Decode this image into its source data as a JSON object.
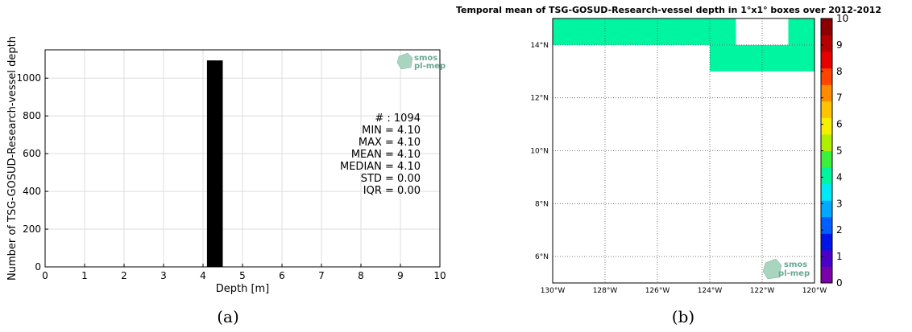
{
  "chart_data": [
    {
      "type": "bar",
      "xlabel": "Depth [m]",
      "ylabel": "Number of TSG-GOSUD-Research-vessel depth",
      "xlim": [
        0,
        10
      ],
      "ylim": [
        0,
        1150
      ],
      "x_ticks": [
        "0",
        "1",
        "2",
        "3",
        "4",
        "5",
        "6",
        "7",
        "8",
        "9",
        "10"
      ],
      "y_ticks": [
        "0",
        "200",
        "400",
        "600",
        "800",
        "1000"
      ],
      "bins": [
        [
          4.1,
          4.5
        ]
      ],
      "values": [
        1094
      ],
      "grid": true,
      "bar_color": "#000000",
      "stats": [
        "# : 1094",
        "MIN = 4.10",
        "MAX =  4.10",
        "MEAN = 4.10",
        "MEDIAN = 4.10",
        "STD = 0.00",
        "IQR = 0.00"
      ],
      "logo": [
        "smos",
        "pl-mep"
      ],
      "caption": "(a)"
    },
    {
      "type": "heatmap",
      "title": "Temporal mean of TSG-GOSUD-Research-vessel depth in 1°x1° boxes over 2012-2012",
      "lon_range": [
        -130,
        -120
      ],
      "lat_range": [
        5,
        15
      ],
      "x_ticks": [
        "130°W",
        "128°W",
        "126°W",
        "124°W",
        "122°W",
        "120°W"
      ],
      "y_ticks": [
        "6°N",
        "8°N",
        "10°N",
        "12°N",
        "14°N"
      ],
      "cells": [
        {
          "lon": [
            -130,
            -123
          ],
          "lat": [
            14,
            15
          ],
          "value": 4.1
        },
        {
          "lon": [
            -124,
            -120
          ],
          "lat": [
            13,
            14
          ],
          "value": 4.1
        },
        {
          "lon": [
            -121,
            -120
          ],
          "lat": [
            14,
            15
          ],
          "value": 4.1
        }
      ],
      "colorbar": {
        "min": 0,
        "max": 10,
        "ticks": [
          "0",
          "1",
          "2",
          "3",
          "4",
          "5",
          "6",
          "7",
          "8",
          "9",
          "10"
        ],
        "colors": [
          "#7a00a8",
          "#4b00c8",
          "#0016e8",
          "#0060ff",
          "#00a8ff",
          "#00eaf5",
          "#00f5a0",
          "#3cf03c",
          "#aef000",
          "#f5f000",
          "#ffc400",
          "#ff8c00",
          "#ff4400",
          "#e80000",
          "#b80000",
          "#8c0000"
        ]
      },
      "grid": true,
      "logo": [
        "smos",
        "pl-mep"
      ],
      "caption": "(b)"
    }
  ]
}
